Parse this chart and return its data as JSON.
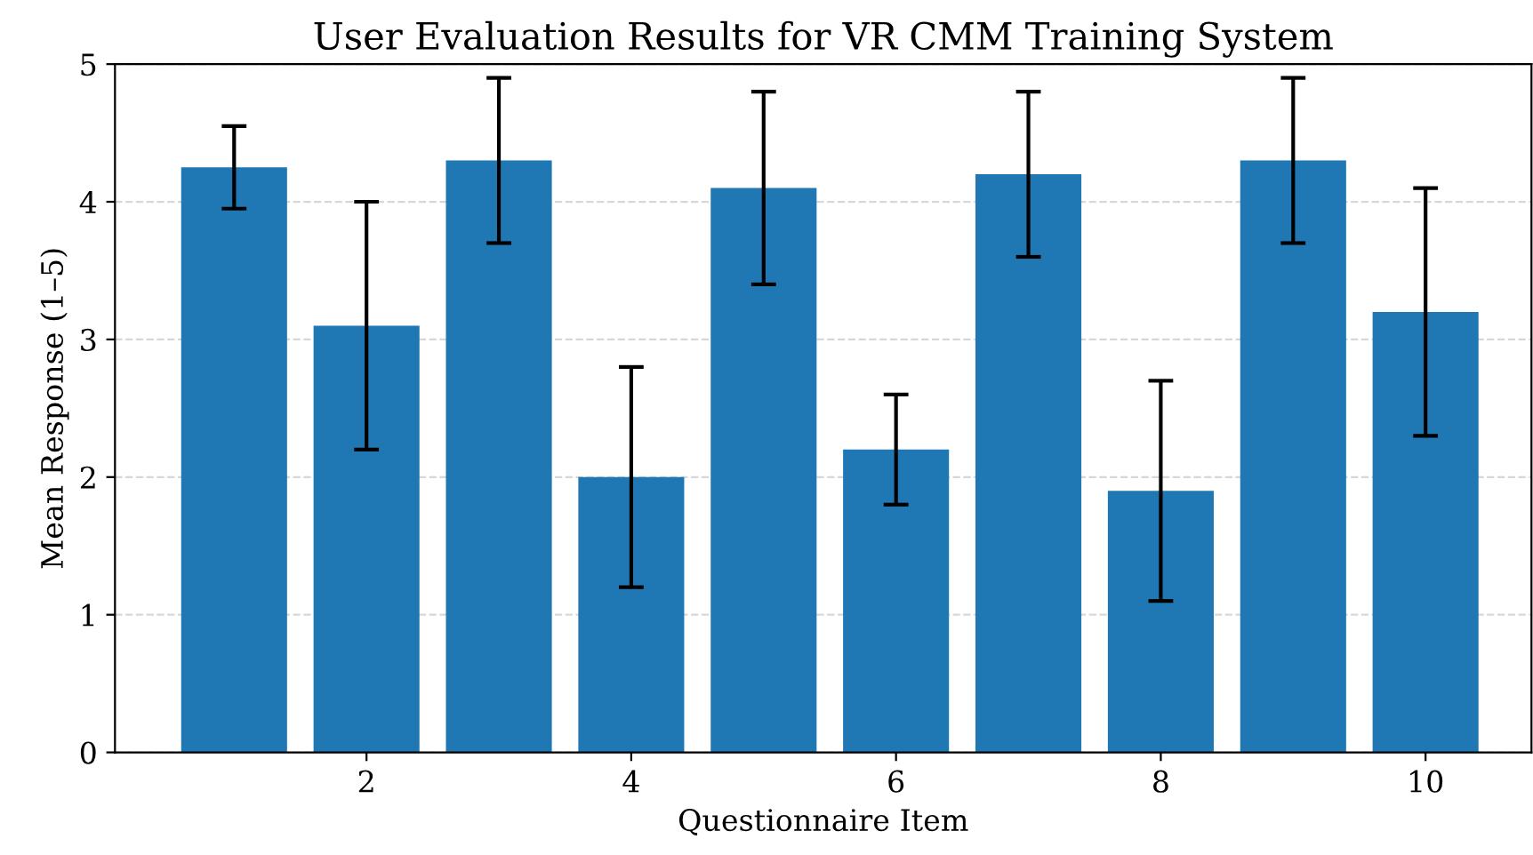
{
  "chart_data": {
    "type": "bar",
    "title": "User Evaluation Results for VR CMM Training System",
    "xlabel": "Questionnaire Item",
    "ylabel": "Mean Response (1–5)",
    "x": [
      1,
      2,
      3,
      4,
      5,
      6,
      7,
      8,
      9,
      10
    ],
    "values": [
      4.25,
      3.1,
      4.3,
      2.0,
      4.1,
      2.2,
      4.2,
      1.9,
      4.3,
      3.2
    ],
    "errors": [
      0.3,
      0.9,
      0.6,
      0.8,
      0.7,
      0.4,
      0.6,
      0.8,
      0.6,
      0.9
    ],
    "color": "#1f77b4",
    "xlim": [
      0.1,
      10.8
    ],
    "xticks": [
      2,
      4,
      6,
      8,
      10
    ],
    "ylim": [
      0,
      5
    ],
    "yticks": [
      0,
      1,
      2,
      3,
      4,
      5
    ],
    "grid": "y"
  }
}
